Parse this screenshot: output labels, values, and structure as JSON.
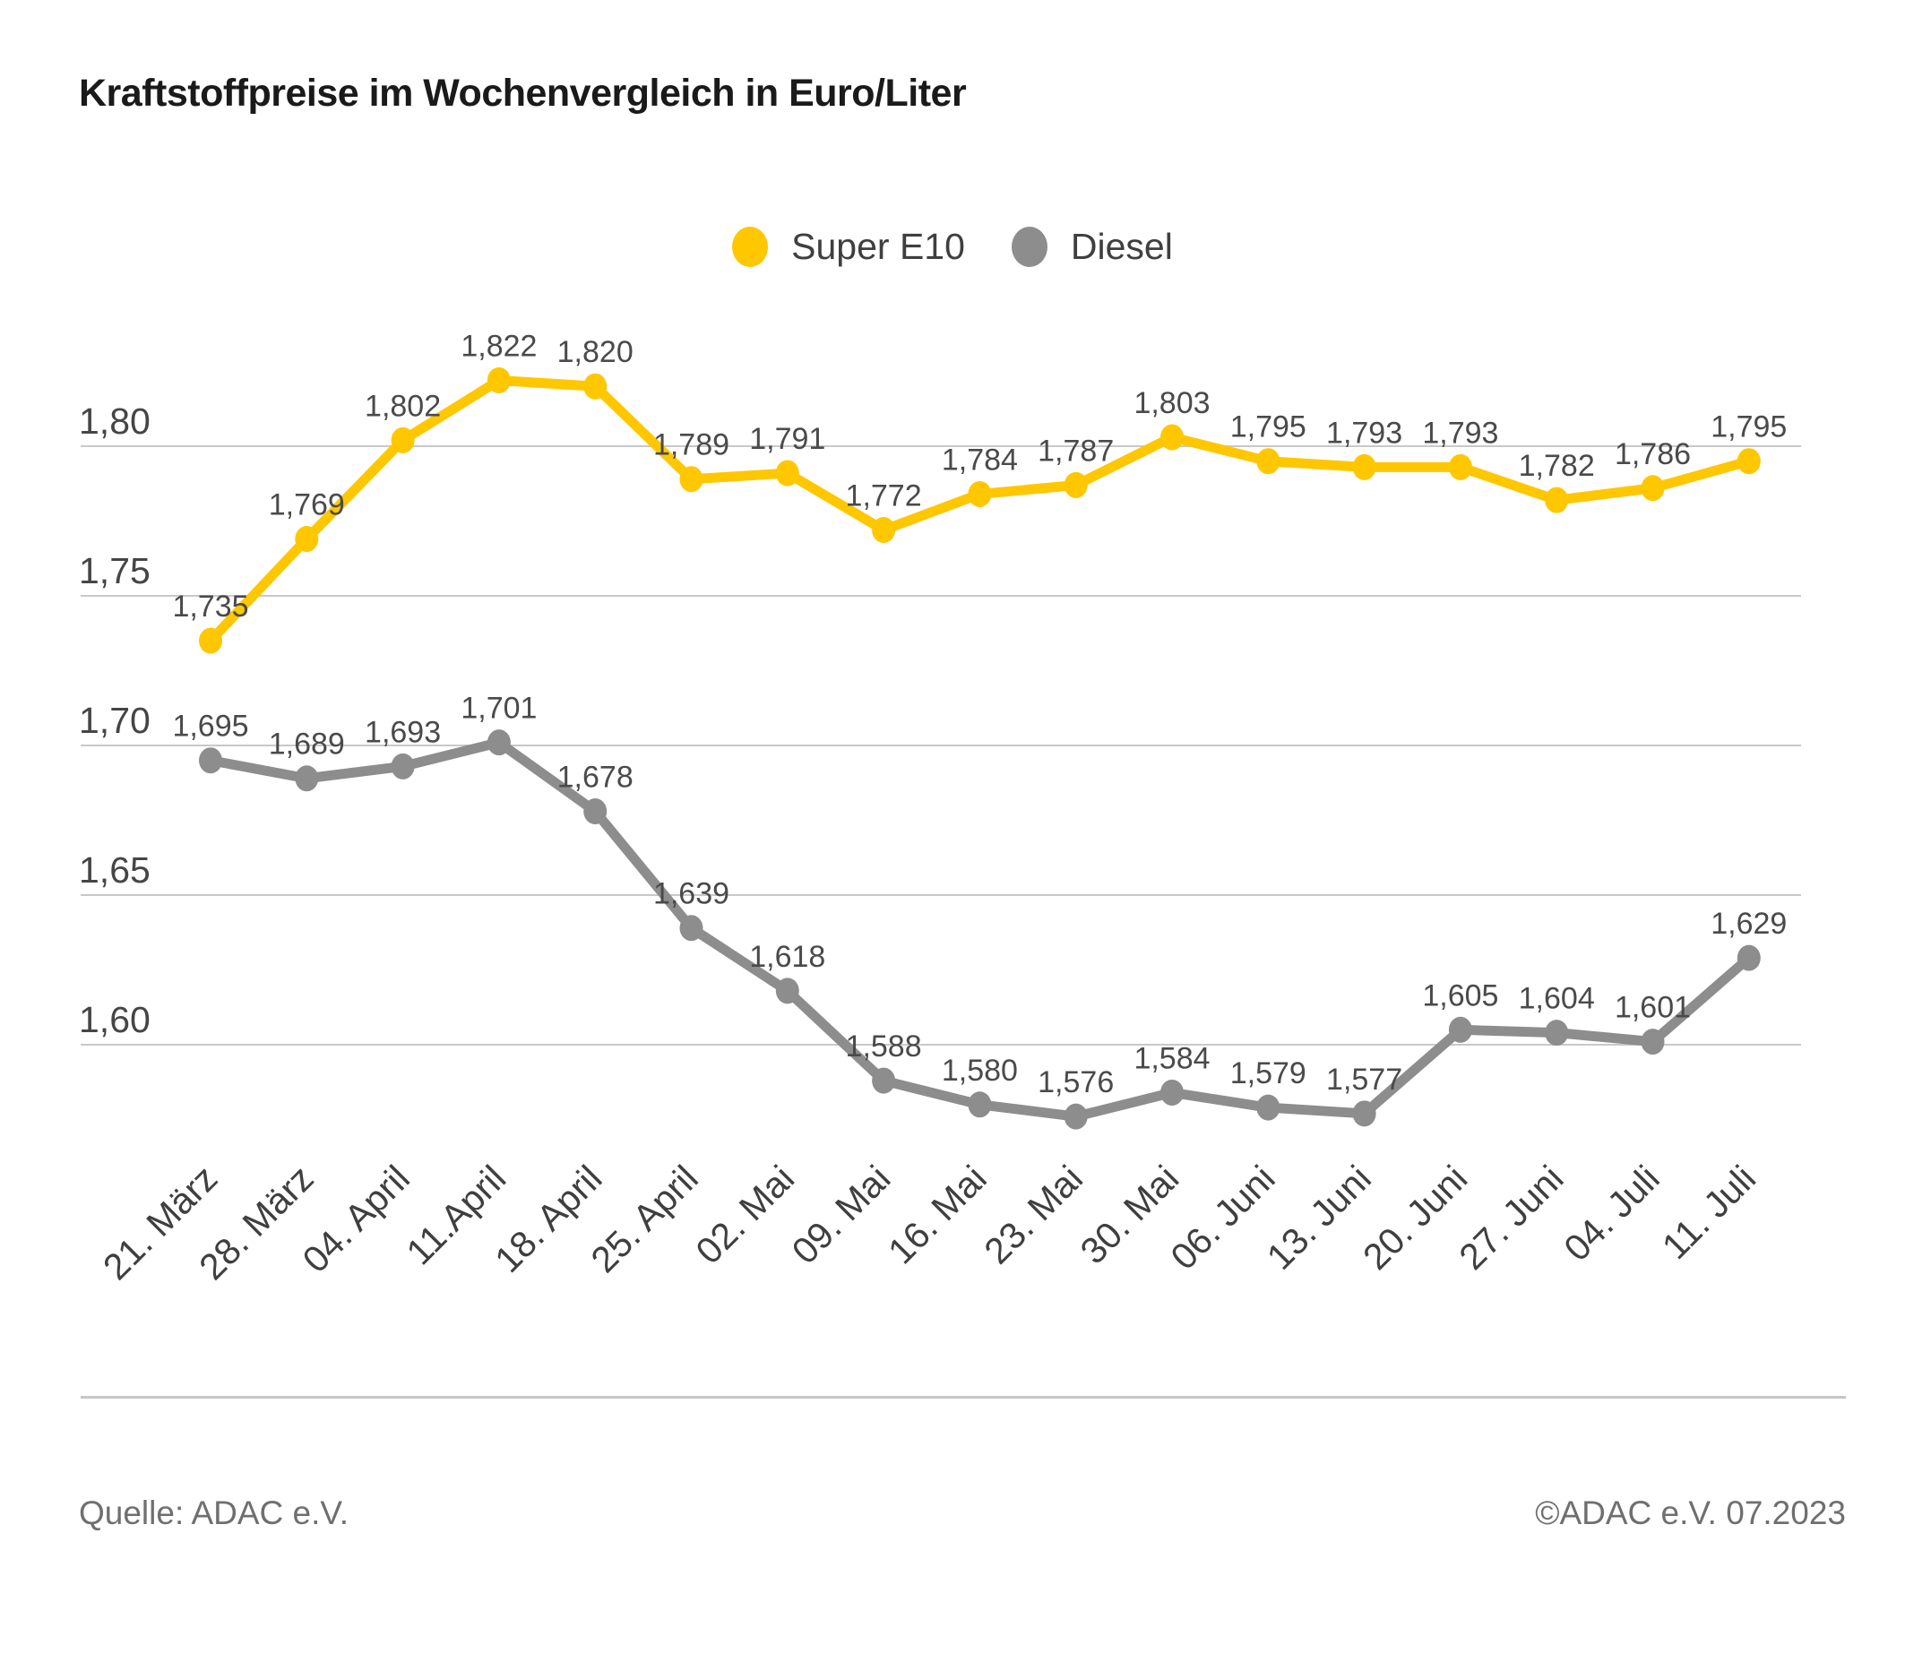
{
  "title": "Kraftstoffpreise im Wochenvergleich in Euro/Liter",
  "legend": [
    {
      "label": "Super E10",
      "color": "#FEC700"
    },
    {
      "label": "Diesel",
      "color": "#8D8D8D"
    }
  ],
  "footer": {
    "source": "Quelle: ADAC e.V.",
    "copyright": "©ADAC e.V. 07.2023"
  },
  "colors": {
    "super_e10": "#FEC700",
    "diesel": "#8D8D8D",
    "grid": "#C8C8C8",
    "axis_text": "#454545",
    "data_label_text": "#4A4A4A",
    "title_text": "#1A1A1A",
    "footer_text": "#6F6F6F"
  },
  "chart_data": {
    "type": "line",
    "title": "Kraftstoffpreise im Wochenvergleich in Euro/Liter",
    "xlabel": "",
    "ylabel": "Euro/Liter",
    "grid": true,
    "legend_position": "top-center",
    "ylim": [
      1.56,
      1.84
    ],
    "categories": [
      "21. März",
      "28. März",
      "04. April",
      "11.April",
      "18. April",
      "25. April",
      "02. Mai",
      "09. Mai",
      "16. Mai",
      "23. Mai",
      "30. Mai",
      "06. Juni",
      "13. Juni",
      "20. Juni",
      "27. Juni",
      "04. Juli",
      "11. Juli"
    ],
    "yticks": [
      {
        "value": 1.8,
        "label": "1,80"
      },
      {
        "value": 1.75,
        "label": "1,75"
      },
      {
        "value": 1.7,
        "label": "1,70"
      },
      {
        "value": 1.65,
        "label": "1,65"
      },
      {
        "value": 1.6,
        "label": "1,60"
      }
    ],
    "series": [
      {
        "name": "Super E10",
        "color": "#FEC700",
        "values": [
          1.735,
          1.769,
          1.802,
          1.822,
          1.82,
          1.789,
          1.791,
          1.772,
          1.784,
          1.787,
          1.803,
          1.795,
          1.793,
          1.793,
          1.782,
          1.786,
          1.795
        ],
        "labels": [
          "1,735",
          "1,769",
          "1,802",
          "1,822",
          "1,820",
          "1,789",
          "1,791",
          "1,772",
          "1,784",
          "1,787",
          "1,803",
          "1,795",
          "1,793",
          "1,793",
          "1,782",
          "1,786",
          "1,795"
        ]
      },
      {
        "name": "Diesel",
        "color": "#8D8D8D",
        "values": [
          1.695,
          1.689,
          1.693,
          1.701,
          1.678,
          1.639,
          1.618,
          1.588,
          1.58,
          1.576,
          1.584,
          1.579,
          1.577,
          1.605,
          1.604,
          1.601,
          1.629
        ],
        "labels": [
          "1,695",
          "1,689",
          "1,693",
          "1,701",
          "1,678",
          "1,639",
          "1,618",
          "1,588",
          "1,580",
          "1,576",
          "1,584",
          "1,579",
          "1,577",
          "1,605",
          "1,604",
          "1,601",
          "1,629"
        ]
      }
    ]
  }
}
